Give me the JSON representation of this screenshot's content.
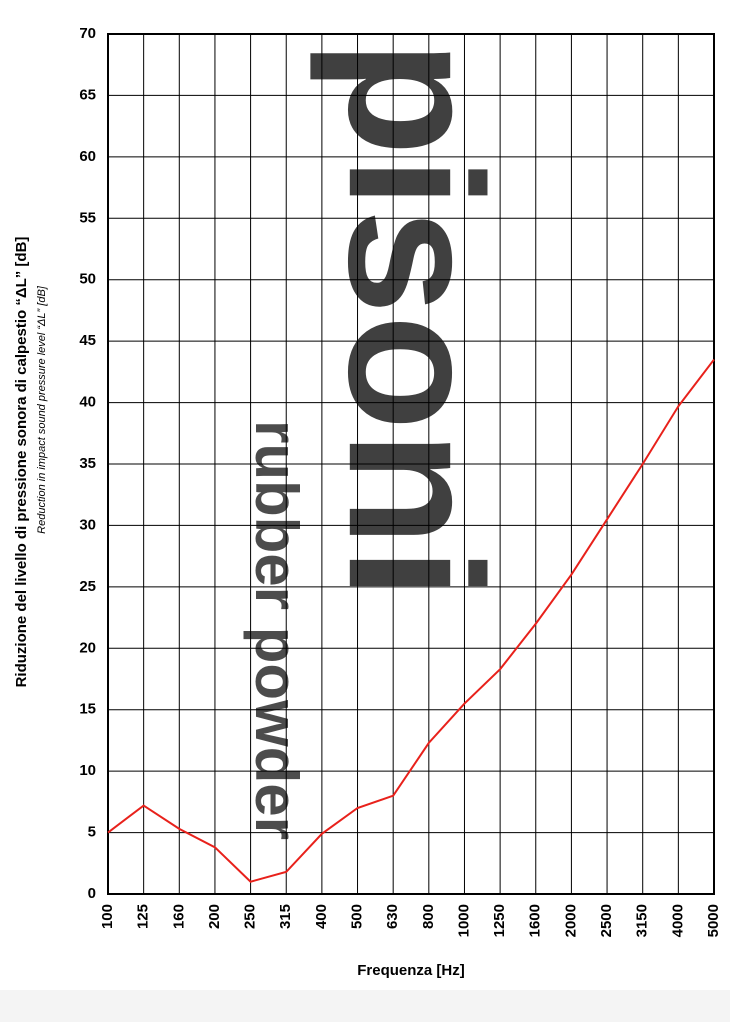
{
  "chart_data": {
    "type": "line",
    "y_label": "Riduzione del livello di pressione sonora di calpestio “ΔL” [dB]",
    "y_label_secondary": "Reduction in impact sound pressure level “ΔL” [dB]",
    "x_label": "Frequenza [Hz]",
    "watermark": [
      "pisoni",
      "rubber powder"
    ],
    "categories": [
      "100",
      "125",
      "160",
      "200",
      "250",
      "315",
      "400",
      "500",
      "630",
      "800",
      "1000",
      "1250",
      "1600",
      "2000",
      "2500",
      "3150",
      "4000",
      "5000"
    ],
    "values": [
      5.0,
      7.2,
      5.3,
      3.8,
      1.0,
      1.8,
      4.9,
      7.0,
      8.0,
      12.3,
      15.5,
      18.3,
      22.0,
      26.0,
      30.5,
      35.0,
      39.7,
      43.5
    ],
    "color": "#e8211b",
    "ylim": [
      0,
      70
    ],
    "yticks": [
      0,
      5,
      10,
      15,
      20,
      25,
      30,
      35,
      40,
      45,
      50,
      55,
      60,
      65,
      70
    ],
    "grid": true
  }
}
